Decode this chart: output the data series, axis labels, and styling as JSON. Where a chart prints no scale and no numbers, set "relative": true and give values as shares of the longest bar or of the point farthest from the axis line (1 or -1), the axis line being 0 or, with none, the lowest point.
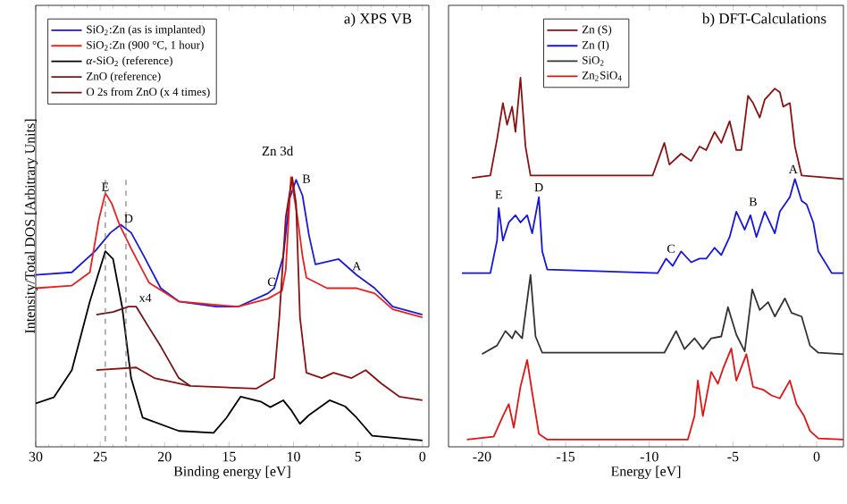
{
  "chart_data": [
    {
      "type": "line",
      "title": "a) XPS VB",
      "xlabel": "Binding energy [eV]",
      "ylabel": "Intensity/Total DOS [Arbitrary Units]",
      "relative": true,
      "legend": "top left",
      "xlim": [
        30,
        -0.5
      ],
      "xticks": [
        30,
        25,
        20,
        15,
        10,
        5,
        0
      ],
      "series": [
        {
          "name": "SiO$_{2}$:Zn (as is implanted)",
          "color": "#1a1ad6",
          "x": [
            30,
            27.2,
            25.4,
            24.2,
            23.4,
            22.6,
            21.7,
            20.3,
            18.9,
            16,
            14.3,
            12,
            11.5,
            10.8,
            10.3,
            9.8,
            9.3,
            8.8,
            8.3,
            6.5,
            5.1,
            3.7,
            2.3,
            0
          ],
          "values": [
            0.63,
            0.64,
            0.72,
            0.79,
            0.82,
            0.79,
            0.71,
            0.58,
            0.53,
            0.51,
            0.51,
            0.56,
            0.58,
            0.7,
            0.92,
            0.99,
            0.93,
            0.78,
            0.67,
            0.69,
            0.63,
            0.58,
            0.51,
            0.48
          ]
        },
        {
          "name": "SiO$_{2}$:Zn (900 °C, 1 hour)",
          "color": "#e8201f",
          "x": [
            30,
            27.2,
            25.8,
            25.1,
            24.6,
            24.1,
            23.5,
            22.6,
            21.2,
            18.9,
            14.3,
            12,
            10.9,
            10.6,
            10.2,
            9.7,
            9.3,
            9,
            7.4,
            5.1,
            3.7,
            2.3,
            0
          ],
          "values": [
            0.58,
            0.59,
            0.64,
            0.84,
            0.94,
            0.9,
            0.82,
            0.73,
            0.6,
            0.53,
            0.51,
            0.54,
            0.57,
            0.65,
            1.0,
            0.85,
            0.7,
            0.62,
            0.58,
            0.58,
            0.56,
            0.5,
            0.47
          ]
        },
        {
          "name": "*α*-SiO$_{2}$ (reference)",
          "color": "#000000",
          "x": [
            30,
            28.6,
            27.2,
            25.8,
            24.6,
            24,
            23.3,
            22.6,
            21.7,
            18.9,
            16.2,
            15.2,
            14.1,
            12.5,
            11.8,
            10.8,
            10.2,
            9.5,
            8.8,
            7.2,
            6,
            5.1,
            3.9,
            0
          ],
          "values": [
            0.144,
            0.167,
            0.27,
            0.53,
            0.72,
            0.69,
            0.51,
            0.24,
            0.09,
            0.04,
            0.033,
            0.09,
            0.17,
            0.15,
            0.13,
            0.156,
            0.12,
            0.067,
            0.1,
            0.156,
            0.133,
            0.09,
            0.022,
            0.004
          ]
        },
        {
          "name": "ZnO (reference)",
          "color": "#8b1010",
          "x": [
            25.3,
            22.2,
            20.8,
            18,
            12.9,
            11.5,
            11.1,
            10.6,
            10.1,
            9.8,
            9.5,
            9,
            7.8,
            6.9,
            5.5,
            4.4,
            3.2,
            1.8,
            0
          ],
          "values": [
            0.27,
            0.28,
            0.24,
            0.21,
            0.2,
            0.24,
            0.47,
            0.85,
            1.0,
            0.9,
            0.47,
            0.26,
            0.24,
            0.26,
            0.24,
            0.27,
            0.22,
            0.17,
            0.156
          ]
        },
        {
          "name": "O 2s from ZnO (x 4 times)",
          "color": "#6e1414",
          "x": [
            25.3,
            24,
            22.8,
            22.2,
            21.2,
            20.3,
            18.9,
            18
          ],
          "values": [
            0.48,
            0.49,
            0.51,
            0.51,
            0.43,
            0.36,
            0.24,
            0.21
          ]
        }
      ],
      "ref_lines": [
        {
          "axis": "x",
          "value": 24.6,
          "color": "#808080",
          "line_style": "dashed"
        },
        {
          "axis": "x",
          "value": 23.0,
          "color": "#808080",
          "line_style": "dashed"
        }
      ],
      "annotations": [
        {
          "text": "E",
          "x": 24.6,
          "y": 0.94
        },
        {
          "text": "D",
          "x": 22.8,
          "y": 0.82
        },
        "Zn 3d",
        {
          "text": "B",
          "x": 9.0,
          "y": 0.97
        },
        {
          "text": "C",
          "x": 11.7,
          "y": 0.58
        },
        {
          "text": "A",
          "x": 5.1,
          "y": 0.64
        },
        {
          "text": "x4",
          "x": 21.5,
          "y": 0.52
        }
      ]
    },
    {
      "type": "line",
      "title": "b) DFT-Calculations",
      "xlabel": "Energy [eV]",
      "relative": true,
      "legend": "top left",
      "xlim": [
        -22,
        1.6
      ],
      "xticks": [
        -20,
        -15,
        -10,
        -5,
        0
      ],
      "series": [
        {
          "name": "Zn (S)",
          "color": "#8b1010",
          "x": [
            -20.6,
            -19.5,
            -19.1,
            -18.75,
            -18.5,
            -18.2,
            -18,
            -17.7,
            -17.4,
            -17.1,
            -9.8,
            -9.1,
            -8.8,
            -8.1,
            -7.5,
            -7,
            -6.6,
            -6.1,
            -5.7,
            -5.2,
            -4.8,
            -4.5,
            -4.1,
            -3.8,
            -3.4,
            -3.1,
            -2.5,
            -2.2,
            -2,
            -1.6,
            -1.3,
            -0.9,
            1.6
          ],
          "values": [
            0.723,
            0.73,
            0.83,
            0.93,
            0.87,
            0.92,
            0.85,
            1.0,
            0.81,
            0.73,
            0.73,
            0.82,
            0.76,
            0.79,
            0.77,
            0.81,
            0.8,
            0.85,
            0.82,
            0.88,
            0.8,
            0.8,
            0.95,
            0.93,
            0.89,
            0.94,
            0.97,
            0.96,
            0.92,
            0.93,
            0.81,
            0.73,
            0.72
          ]
        },
        {
          "name": "Zn (I)",
          "color": "#1414e0",
          "x": [
            -21.2,
            -19.5,
            -19.1,
            -19,
            -18.75,
            -18.4,
            -18,
            -17.7,
            -17.3,
            -17,
            -16.6,
            -16.4,
            -16.1,
            -9.5,
            -9,
            -8.6,
            -8.1,
            -7.5,
            -7,
            -6.6,
            -6.1,
            -5.7,
            -5.2,
            -4.8,
            -4.3,
            -3.96,
            -3.6,
            -3.1,
            -2.5,
            -2.2,
            -1.6,
            -1.3,
            -0.9,
            -0.6,
            -0.2,
            0.1,
            0.9,
            1.6
          ],
          "values": [
            0.46,
            0.46,
            0.55,
            0.64,
            0.55,
            0.6,
            0.62,
            0.6,
            0.62,
            0.57,
            0.67,
            0.52,
            0.47,
            0.46,
            0.5,
            0.48,
            0.52,
            0.49,
            0.5,
            0.5,
            0.53,
            0.51,
            0.56,
            0.63,
            0.58,
            0.62,
            0.56,
            0.63,
            0.57,
            0.63,
            0.67,
            0.72,
            0.66,
            0.65,
            0.6,
            0.52,
            0.46,
            0.46
          ]
        },
        {
          "name": "SiO$_{2}$",
          "color": "#333333",
          "x": [
            -20,
            -19.1,
            -18.6,
            -18.2,
            -18,
            -17.6,
            -17.1,
            -16.8,
            -16.4,
            -9.1,
            -8.4,
            -7.9,
            -7.3,
            -6.8,
            -6.3,
            -5.7,
            -5.3,
            -4.8,
            -4.3,
            -3.85,
            -3.4,
            -2.9,
            -2.5,
            -1.9,
            -1.5,
            -0.9,
            -0.4,
            0.1,
            1.6
          ],
          "values": [
            0.236,
            0.26,
            0.3,
            0.28,
            0.3,
            0.28,
            0.455,
            0.285,
            0.24,
            0.24,
            0.3,
            0.25,
            0.28,
            0.25,
            0.28,
            0.285,
            0.366,
            0.29,
            0.244,
            0.415,
            0.358,
            0.38,
            0.34,
            0.39,
            0.35,
            0.34,
            0.26,
            0.24,
            0.236
          ]
        },
        {
          "name": "Zn$_{2}$SiO$_{4}$",
          "color": "#e01414",
          "x": [
            -20.9,
            -19.3,
            -18.75,
            -18.4,
            -18.1,
            -17.7,
            -17.3,
            -17,
            -16.6,
            -16.1,
            -7.7,
            -7.3,
            -7.1,
            -6.8,
            -6.3,
            -5.9,
            -5.6,
            -5.1,
            -4.8,
            -4.2,
            -3.8,
            -3.2,
            -2.7,
            -2.2,
            -1.6,
            -1.2,
            -0.75,
            -0.4,
            0.1,
            1.6
          ],
          "values": [
            0,
            0.008,
            0.065,
            0.098,
            0.033,
            0.146,
            0.22,
            0.13,
            0.016,
            0,
            0,
            0.065,
            0.163,
            0.065,
            0.187,
            0.154,
            0.195,
            0.252,
            0.163,
            0.236,
            0.146,
            0.138,
            0.122,
            0.114,
            0.163,
            0.098,
            0.065,
            0.024,
            0.003,
            0
          ]
        }
      ],
      "annotations": [
        {
          "text": "E",
          "x": -19.0,
          "y": 0.66
        },
        {
          "text": "D",
          "x": -16.6,
          "y": 0.68
        },
        {
          "text": "C",
          "x": -8.7,
          "y": 0.51
        },
        {
          "text": "B",
          "x": -3.8,
          "y": 0.64
        },
        {
          "text": "A",
          "x": -1.4,
          "y": 0.73
        }
      ]
    }
  ]
}
